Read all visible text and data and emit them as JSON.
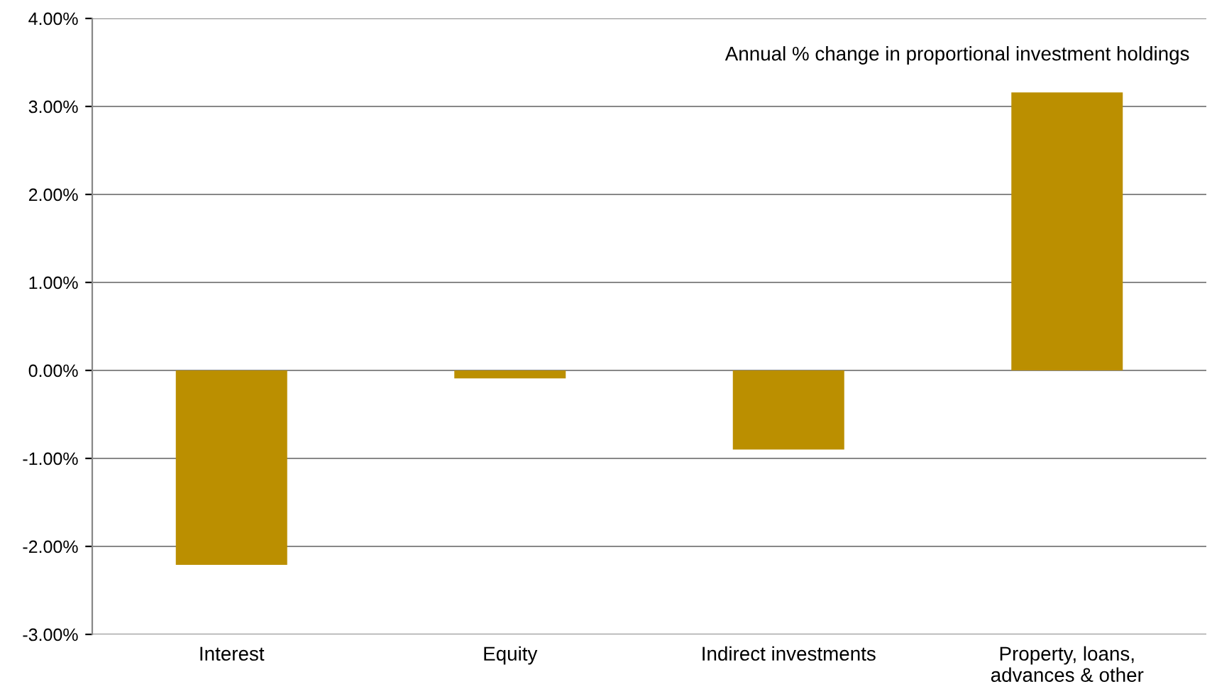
{
  "chart_data": {
    "type": "bar",
    "categories": [
      "Interest",
      "Equity",
      "Indirect investments",
      "Property, loans,\nadvances & other"
    ],
    "values": [
      -2.21,
      -0.09,
      -0.9,
      3.16
    ],
    "color": "#bb8f00",
    "ylim": [
      -3,
      4
    ],
    "yticks": [
      {
        "value": -3,
        "label": "-3.00%"
      },
      {
        "value": -2,
        "label": "-2.00%"
      },
      {
        "value": -1,
        "label": "-1.00%"
      },
      {
        "value": 0,
        "label": "0.00%"
      },
      {
        "value": 1,
        "label": "1.00%"
      },
      {
        "value": 2,
        "label": "2.00%"
      },
      {
        "value": 3,
        "label": "3.00%"
      },
      {
        "value": 4,
        "label": "4.00%"
      }
    ],
    "grid": "y",
    "annotations": [
      "Annual % change in proportional investment holdings"
    ]
  }
}
